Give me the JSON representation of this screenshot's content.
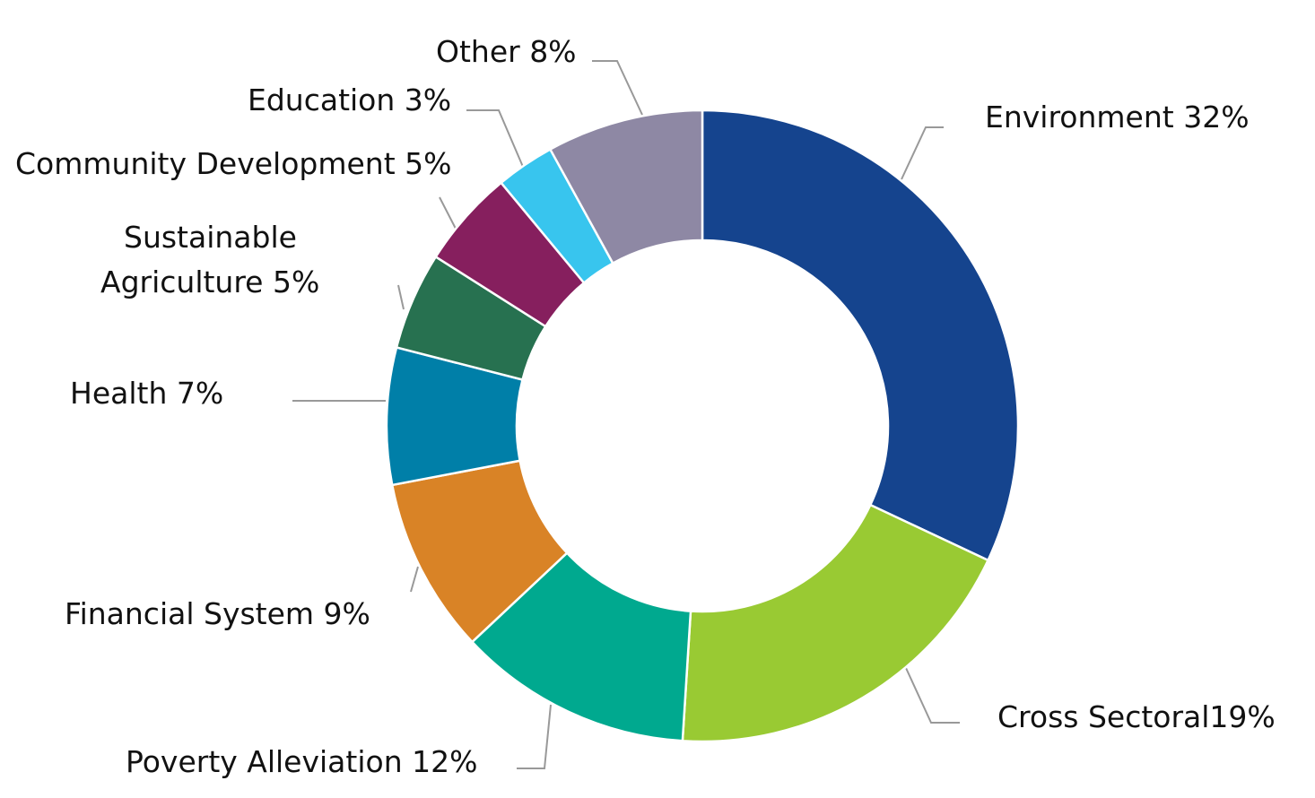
{
  "chart_data": {
    "type": "pie",
    "donut": true,
    "title": "",
    "slices": [
      {
        "label": "Environment 32%",
        "name": "Environment",
        "value": 32,
        "color": "#15448e"
      },
      {
        "label": "Cross Sectoral19%",
        "name": "Cross Sectoral",
        "value": 19,
        "color": "#99ca33"
      },
      {
        "label": "Poverty Alleviation 12%",
        "name": "Poverty Alleviation",
        "value": 12,
        "color": "#00a98f"
      },
      {
        "label": "Financial System 9%",
        "name": "Financial System",
        "value": 9,
        "color": "#d98326"
      },
      {
        "label": "Health 7%",
        "name": "Health",
        "value": 7,
        "color": "#007fa8"
      },
      {
        "label": "Sustainable Agriculture 5%",
        "label_lines": [
          "Sustainable",
          "Agriculture 5%"
        ],
        "name": "Sustainable Agriculture",
        "value": 5,
        "color": "#277150"
      },
      {
        "label": "Community Development 5%",
        "name": "Community Development",
        "value": 5,
        "color": "#861f5e"
      },
      {
        "label": "Education 3%",
        "name": "Education",
        "value": 3,
        "color": "#38c5ee"
      },
      {
        "label": "Other 8%",
        "name": "Other",
        "value": 8,
        "color": "#8e88a4"
      }
    ]
  }
}
